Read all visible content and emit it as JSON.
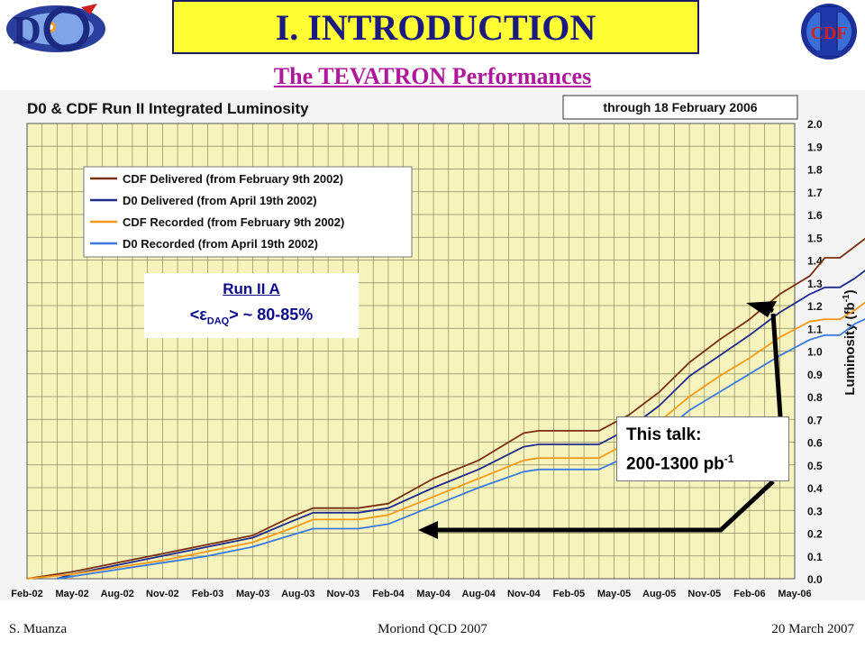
{
  "header": {
    "title": "I. INTRODUCTION",
    "subtitle": "The TEVATRON Performances"
  },
  "logos": {
    "left": "D0 experiment logo",
    "right_text": "CDF"
  },
  "footer": {
    "author": "S. Muanza",
    "event": "Moriond QCD 2007",
    "date": "20 March 2007"
  },
  "annotations": {
    "run_title": "Run II A",
    "efficiency_lt": "<",
    "efficiency_symbol": "ε",
    "efficiency_sub": "DAQ",
    "efficiency_rest": "> ~ 80-85%",
    "talk_line1": "This talk:",
    "talk_value": "200-1300 pb",
    "talk_sup": "-1"
  },
  "chart_data": {
    "type": "line",
    "title": "D0 & CDF Run II Integrated Luminosity",
    "date_note": "through 18 February 2006",
    "ylabel": "Luminosity (fb",
    "ylabel_sup": "-1",
    "ylabel_close": ")",
    "ylim": [
      0,
      2.0
    ],
    "yticks": [
      "0.0",
      "0.1",
      "0.2",
      "0.3",
      "0.4",
      "0.5",
      "0.6",
      "0.7",
      "0.8",
      "0.9",
      "1.0",
      "1.1",
      "1.2",
      "1.3",
      "1.4",
      "1.5",
      "1.6",
      "1.7",
      "1.8",
      "1.9",
      "2.0"
    ],
    "xticks": [
      "Feb-02",
      "May-02",
      "Aug-02",
      "Nov-02",
      "Feb-03",
      "May-03",
      "Aug-03",
      "Nov-03",
      "Feb-04",
      "May-04",
      "Aug-04",
      "Nov-04",
      "Feb-05",
      "May-05",
      "Aug-05",
      "Nov-05",
      "Feb-06",
      "May-06"
    ],
    "grid": true,
    "legend_position": "top-left",
    "background_color": "#f7f3bd",
    "grid_color": "#8a8a60",
    "series": [
      {
        "name": "CDF Delivered (from February 9th 2002)",
        "color": "#7a2e10",
        "points": [
          [
            0,
            0.0
          ],
          [
            3,
            0.03
          ],
          [
            6,
            0.07
          ],
          [
            9,
            0.11
          ],
          [
            12,
            0.15
          ],
          [
            15,
            0.19
          ],
          [
            17.5,
            0.27
          ],
          [
            19,
            0.31
          ],
          [
            20,
            0.31
          ],
          [
            22,
            0.31
          ],
          [
            24,
            0.33
          ],
          [
            27,
            0.44
          ],
          [
            30,
            0.52
          ],
          [
            33,
            0.64
          ],
          [
            34,
            0.65
          ],
          [
            38,
            0.65
          ],
          [
            40,
            0.72
          ],
          [
            42,
            0.82
          ],
          [
            44,
            0.95
          ],
          [
            46,
            1.05
          ],
          [
            48,
            1.14
          ],
          [
            50,
            1.25
          ],
          [
            52,
            1.33
          ],
          [
            53,
            1.41
          ],
          [
            54,
            1.41
          ],
          [
            55,
            1.46
          ],
          [
            56,
            1.51
          ],
          [
            56.5,
            1.51
          ],
          [
            57,
            1.55
          ]
        ]
      },
      {
        "name": "D0 Delivered (from April 19th 2002)",
        "color": "#1e2a8c",
        "points": [
          [
            2,
            0.0
          ],
          [
            3,
            0.02
          ],
          [
            6,
            0.06
          ],
          [
            9,
            0.1
          ],
          [
            12,
            0.14
          ],
          [
            15,
            0.18
          ],
          [
            17.5,
            0.25
          ],
          [
            19,
            0.29
          ],
          [
            20,
            0.29
          ],
          [
            22,
            0.29
          ],
          [
            24,
            0.31
          ],
          [
            27,
            0.4
          ],
          [
            30,
            0.48
          ],
          [
            33,
            0.58
          ],
          [
            34,
            0.59
          ],
          [
            38,
            0.59
          ],
          [
            40,
            0.66
          ],
          [
            42,
            0.76
          ],
          [
            44,
            0.89
          ],
          [
            46,
            0.98
          ],
          [
            48,
            1.07
          ],
          [
            50,
            1.17
          ],
          [
            52,
            1.25
          ],
          [
            53,
            1.28
          ],
          [
            54,
            1.28
          ],
          [
            55,
            1.32
          ],
          [
            56,
            1.37
          ],
          [
            56.5,
            1.37
          ],
          [
            57,
            1.41
          ]
        ]
      },
      {
        "name": "CDF Recorded (from February 9th 2002)",
        "color": "#f59a18",
        "points": [
          [
            0,
            0.0
          ],
          [
            3,
            0.02
          ],
          [
            6,
            0.05
          ],
          [
            9,
            0.08
          ],
          [
            12,
            0.12
          ],
          [
            15,
            0.16
          ],
          [
            17.5,
            0.22
          ],
          [
            19,
            0.26
          ],
          [
            20,
            0.26
          ],
          [
            22,
            0.26
          ],
          [
            24,
            0.28
          ],
          [
            27,
            0.36
          ],
          [
            30,
            0.44
          ],
          [
            33,
            0.52
          ],
          [
            34,
            0.53
          ],
          [
            38,
            0.53
          ],
          [
            40,
            0.6
          ],
          [
            42,
            0.69
          ],
          [
            44,
            0.8
          ],
          [
            46,
            0.89
          ],
          [
            48,
            0.97
          ],
          [
            50,
            1.06
          ],
          [
            52,
            1.13
          ],
          [
            53,
            1.14
          ],
          [
            54,
            1.14
          ],
          [
            55,
            1.18
          ],
          [
            56,
            1.23
          ],
          [
            56.5,
            1.22
          ],
          [
            57,
            1.27
          ]
        ]
      },
      {
        "name": "D0 Recorded (from April 19th 2002)",
        "color": "#3a7ae0",
        "points": [
          [
            2,
            0.0
          ],
          [
            3,
            0.01
          ],
          [
            6,
            0.04
          ],
          [
            9,
            0.07
          ],
          [
            12,
            0.1
          ],
          [
            15,
            0.14
          ],
          [
            17.5,
            0.19
          ],
          [
            19,
            0.22
          ],
          [
            20,
            0.22
          ],
          [
            22,
            0.22
          ],
          [
            24,
            0.24
          ],
          [
            27,
            0.32
          ],
          [
            30,
            0.4
          ],
          [
            33,
            0.47
          ],
          [
            34,
            0.48
          ],
          [
            38,
            0.48
          ],
          [
            40,
            0.54
          ],
          [
            42,
            0.63
          ],
          [
            44,
            0.74
          ],
          [
            46,
            0.82
          ],
          [
            48,
            0.9
          ],
          [
            50,
            0.98
          ],
          [
            52,
            1.05
          ],
          [
            53,
            1.07
          ],
          [
            54,
            1.07
          ],
          [
            55,
            1.12
          ],
          [
            56,
            1.15
          ],
          [
            56.5,
            1.16
          ],
          [
            57,
            1.2
          ]
        ]
      }
    ]
  }
}
